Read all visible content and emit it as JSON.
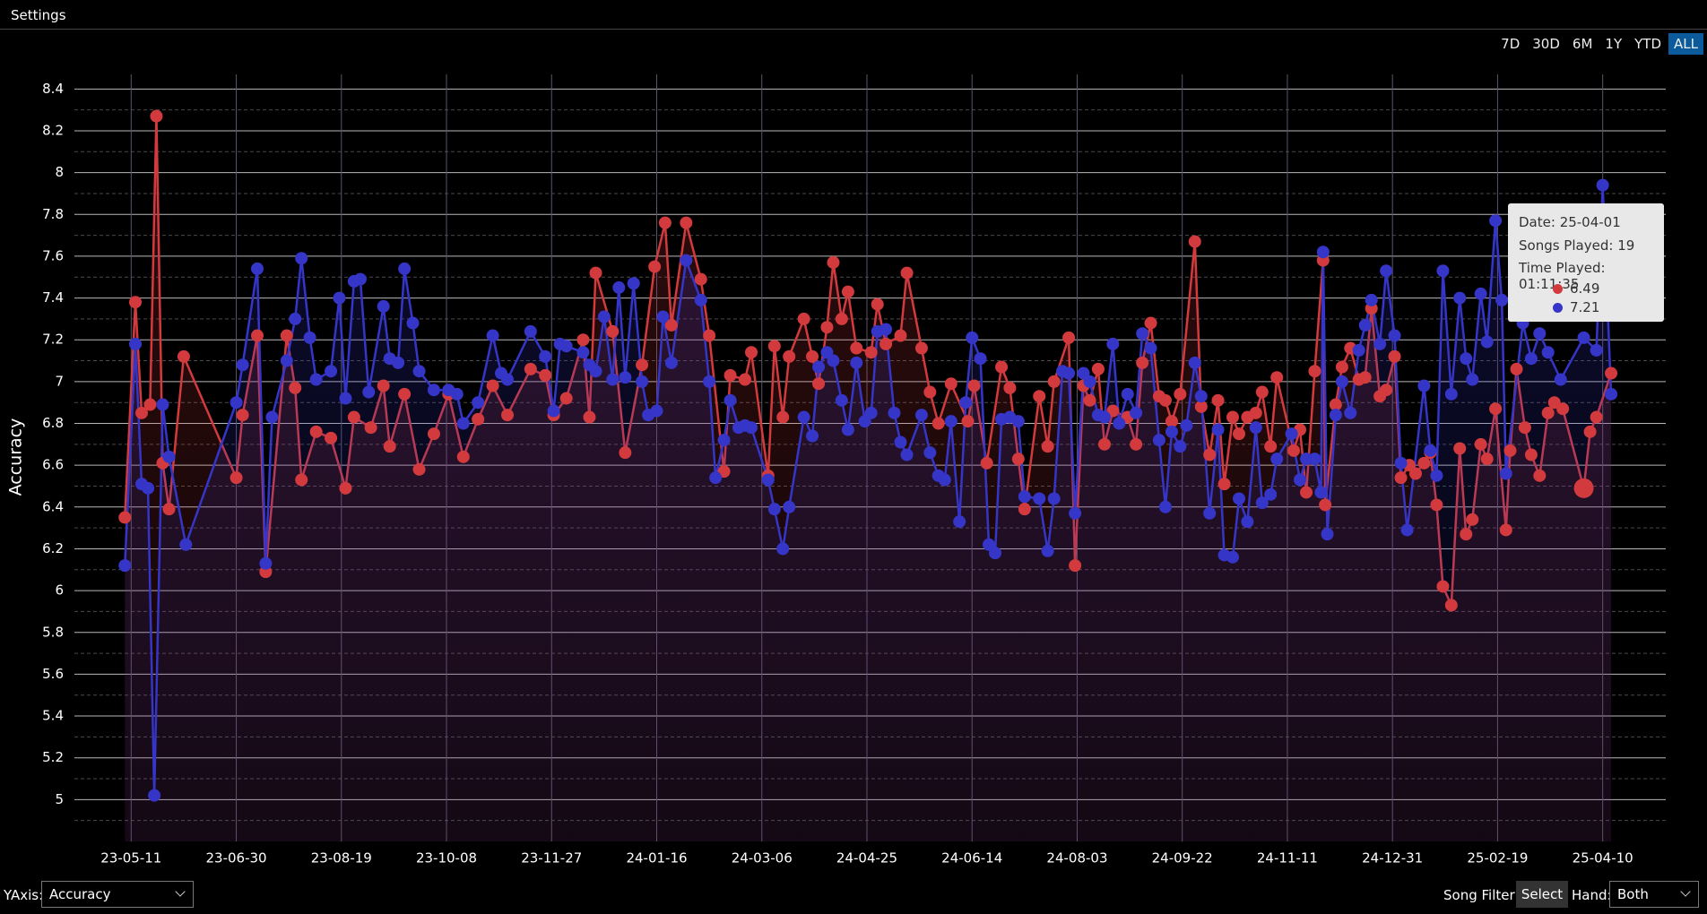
{
  "header": {
    "title": "Settings"
  },
  "range_buttons": {
    "options": [
      "7D",
      "30D",
      "6M",
      "1Y",
      "YTD",
      "ALL"
    ],
    "selected": 5
  },
  "controls": {
    "yaxis_label": "YAxis:",
    "yaxis_value": "Accuracy",
    "song_filter_label": "Song Filter:",
    "song_filter_button": "Select",
    "hand_label": "Hand:",
    "hand_value": "Both"
  },
  "chart_data": {
    "type": "line",
    "y_label": "Accuracy",
    "xlim": [
      "23-04-14",
      "25-05-10"
    ],
    "xticks": [
      "23-05-11",
      "23-06-30",
      "23-08-19",
      "23-10-08",
      "23-11-27",
      "24-01-16",
      "24-03-06",
      "24-04-25",
      "24-06-14",
      "24-08-03",
      "24-09-22",
      "24-11-11",
      "24-12-31",
      "25-02-19",
      "25-04-10"
    ],
    "ylim": [
      4.8,
      8.47
    ],
    "yticks": [
      5,
      5.2,
      5.4,
      5.6,
      5.8,
      6,
      6.2,
      6.4,
      6.6,
      6.8,
      7,
      7.2,
      7.4,
      7.6,
      7.8,
      8,
      8.2,
      8.4
    ],
    "grid": true,
    "minor_grid": true,
    "series": [
      {
        "color": "#d23a3e",
        "x": [
          "23-05-08",
          "23-05-13",
          "23-05-16",
          "23-05-20",
          "23-05-23",
          "23-05-26",
          "23-05-29",
          "23-06-05",
          "23-06-30",
          "23-07-03",
          "23-07-10",
          "23-07-14",
          "23-07-24",
          "23-07-28",
          "23-07-31",
          "23-08-07",
          "23-08-14",
          "23-08-21",
          "23-08-25",
          "23-09-02",
          "23-09-08",
          "23-09-11",
          "23-09-18",
          "23-09-25",
          "23-10-02",
          "23-10-09",
          "23-10-16",
          "23-10-23",
          "23-10-30",
          "23-11-06",
          "23-11-17",
          "23-11-24",
          "23-11-28",
          "23-12-04",
          "23-12-12",
          "23-12-15",
          "23-12-18",
          "23-12-26",
          "24-01-01",
          "24-01-09",
          "24-01-15",
          "24-01-20",
          "24-01-23",
          "24-01-30",
          "24-02-06",
          "24-02-10",
          "24-02-17",
          "24-02-20",
          "24-02-27",
          "24-03-01",
          "24-03-09",
          "24-03-12",
          "24-03-16",
          "24-03-19",
          "24-03-26",
          "24-03-30",
          "24-04-02",
          "24-04-06",
          "24-04-09",
          "24-04-13",
          "24-04-16",
          "24-04-20",
          "24-04-27",
          "24-04-30",
          "24-05-04",
          "24-05-11",
          "24-05-14",
          "24-05-21",
          "24-05-25",
          "24-05-29",
          "24-06-04",
          "24-06-12",
          "24-06-15",
          "24-06-21",
          "24-06-28",
          "24-07-02",
          "24-07-06",
          "24-07-09",
          "24-07-16",
          "24-07-20",
          "24-07-23",
          "24-07-30",
          "24-08-02",
          "24-08-06",
          "24-08-09",
          "24-08-13",
          "24-08-16",
          "24-08-20",
          "24-08-27",
          "24-08-31",
          "24-09-03",
          "24-09-07",
          "24-09-11",
          "24-09-14",
          "24-09-17",
          "24-09-21",
          "24-09-28",
          "24-10-01",
          "24-10-05",
          "24-10-09",
          "24-10-12",
          "24-10-16",
          "24-10-19",
          "24-10-23",
          "24-10-27",
          "24-10-30",
          "24-11-03",
          "24-11-06",
          "24-11-14",
          "24-11-17",
          "24-11-20",
          "24-11-24",
          "24-11-28",
          "24-11-29",
          "24-12-04",
          "24-12-07",
          "24-12-11",
          "24-12-15",
          "24-12-18",
          "24-12-21",
          "24-12-25",
          "24-12-28",
          "25-01-01",
          "25-01-04",
          "25-01-08",
          "25-01-11",
          "25-01-15",
          "25-01-18",
          "25-01-21",
          "25-01-24",
          "25-01-28",
          "25-02-01",
          "25-02-04",
          "25-02-07",
          "25-02-11",
          "25-02-14",
          "25-02-18",
          "25-02-23",
          "25-02-25",
          "25-02-28",
          "25-03-04",
          "25-03-07",
          "25-03-11",
          "25-03-15",
          "25-03-18",
          "25-03-22",
          "25-04-01",
          "25-04-04",
          "25-04-07",
          "25-04-14"
        ],
        "values": [
          6.35,
          7.38,
          6.85,
          6.89,
          8.27,
          6.61,
          6.39,
          7.12,
          6.54,
          6.84,
          7.22,
          6.09,
          7.22,
          6.97,
          6.53,
          6.76,
          6.73,
          6.49,
          6.83,
          6.78,
          6.98,
          6.69,
          6.94,
          6.58,
          6.75,
          6.94,
          6.64,
          6.82,
          6.98,
          6.84,
          7.06,
          7.03,
          6.84,
          6.92,
          7.2,
          6.83,
          7.52,
          7.24,
          6.66,
          7.08,
          7.55,
          7.76,
          7.27,
          7.76,
          7.49,
          7.22,
          6.57,
          7.03,
          7.01,
          7.14,
          6.55,
          7.17,
          6.83,
          7.12,
          7.3,
          7.12,
          6.99,
          7.26,
          7.57,
          7.3,
          7.43,
          7.16,
          7.14,
          7.37,
          7.18,
          7.22,
          7.52,
          7.16,
          6.95,
          6.8,
          6.99,
          6.81,
          6.98,
          6.61,
          7.07,
          6.97,
          6.63,
          6.39,
          6.93,
          6.69,
          7.0,
          7.21,
          6.12,
          6.98,
          6.91,
          7.06,
          6.7,
          6.86,
          6.83,
          6.7,
          7.09,
          7.28,
          6.93,
          6.91,
          6.81,
          6.94,
          7.67,
          6.88,
          6.65,
          6.91,
          6.51,
          6.83,
          6.75,
          6.83,
          6.85,
          6.95,
          6.69,
          7.02,
          6.67,
          6.77,
          6.47,
          7.05,
          7.58,
          6.41,
          6.89,
          7.07,
          7.16,
          7.01,
          7.02,
          7.35,
          6.93,
          6.96,
          7.12,
          6.54,
          6.6,
          6.56,
          6.61,
          6.66,
          6.41,
          6.02,
          5.93,
          6.68,
          6.27,
          6.34,
          6.7,
          6.63,
          6.87,
          6.29,
          6.67,
          7.06,
          6.78,
          6.65,
          6.55,
          6.85,
          6.9,
          6.87,
          6.49,
          6.76,
          6.83,
          7.04
        ]
      },
      {
        "color": "#3535c8",
        "x": [
          "23-05-08",
          "23-05-13",
          "23-05-16",
          "23-05-19",
          "23-05-22",
          "23-05-26",
          "23-05-29",
          "23-06-06",
          "23-06-30",
          "23-07-03",
          "23-07-10",
          "23-07-14",
          "23-07-17",
          "23-07-24",
          "23-07-28",
          "23-07-31",
          "23-08-04",
          "23-08-07",
          "23-08-14",
          "23-08-18",
          "23-08-21",
          "23-08-25",
          "23-08-28",
          "23-09-01",
          "23-09-08",
          "23-09-11",
          "23-09-15",
          "23-09-18",
          "23-09-22",
          "23-09-25",
          "23-10-02",
          "23-10-09",
          "23-10-13",
          "23-10-16",
          "23-10-23",
          "23-10-30",
          "23-11-03",
          "23-11-06",
          "23-11-17",
          "23-11-24",
          "23-11-28",
          "23-12-01",
          "23-12-04",
          "23-12-12",
          "23-12-15",
          "23-12-18",
          "23-12-22",
          "23-12-26",
          "23-12-29",
          "24-01-01",
          "24-01-05",
          "24-01-09",
          "24-01-12",
          "24-01-16",
          "24-01-19",
          "24-01-23",
          "24-01-30",
          "24-02-06",
          "24-02-10",
          "24-02-13",
          "24-02-17",
          "24-02-20",
          "24-02-24",
          "24-02-27",
          "24-03-01",
          "24-03-09",
          "24-03-12",
          "24-03-16",
          "24-03-19",
          "24-03-26",
          "24-03-30",
          "24-04-02",
          "24-04-06",
          "24-04-09",
          "24-04-13",
          "24-04-16",
          "24-04-20",
          "24-04-24",
          "24-04-27",
          "24-04-30",
          "24-05-04",
          "24-05-08",
          "24-05-11",
          "24-05-14",
          "24-05-21",
          "24-05-25",
          "24-05-29",
          "24-06-01",
          "24-06-04",
          "24-06-08",
          "24-06-11",
          "24-06-14",
          "24-06-18",
          "24-06-22",
          "24-06-25",
          "24-06-28",
          "24-07-02",
          "24-07-06",
          "24-07-09",
          "24-07-16",
          "24-07-20",
          "24-07-23",
          "24-07-27",
          "24-07-30",
          "24-08-02",
          "24-08-06",
          "24-08-09",
          "24-08-13",
          "24-08-16",
          "24-08-20",
          "24-08-23",
          "24-08-27",
          "24-08-31",
          "24-09-03",
          "24-09-07",
          "24-09-11",
          "24-09-14",
          "24-09-17",
          "24-09-21",
          "24-09-24",
          "24-09-28",
          "24-10-01",
          "24-10-05",
          "24-10-09",
          "24-10-12",
          "24-10-16",
          "24-10-19",
          "24-10-23",
          "24-10-27",
          "24-10-30",
          "24-11-03",
          "24-11-06",
          "24-11-13",
          "24-11-17",
          "24-11-20",
          "24-11-24",
          "24-11-27",
          "24-11-28",
          "24-11-30",
          "24-12-04",
          "24-12-07",
          "24-12-11",
          "24-12-15",
          "24-12-18",
          "24-12-21",
          "24-12-25",
          "24-12-28",
          "25-01-01",
          "25-01-04",
          "25-01-07",
          "25-01-15",
          "25-01-18",
          "25-01-21",
          "25-01-24",
          "25-01-28",
          "25-02-01",
          "25-02-04",
          "25-02-07",
          "25-02-11",
          "25-02-14",
          "25-02-18",
          "25-02-21",
          "25-02-23",
          "25-03-03",
          "25-03-07",
          "25-03-11",
          "25-03-15",
          "25-03-21",
          "25-04-01",
          "25-04-07",
          "25-04-10",
          "25-04-14"
        ],
        "values": [
          6.12,
          7.18,
          6.51,
          6.49,
          5.02,
          6.89,
          6.64,
          6.22,
          6.9,
          7.08,
          7.54,
          6.13,
          6.83,
          7.1,
          7.3,
          7.59,
          7.21,
          7.01,
          7.05,
          7.4,
          6.92,
          7.48,
          7.49,
          6.95,
          7.36,
          7.11,
          7.09,
          7.54,
          7.28,
          7.05,
          6.96,
          6.96,
          6.94,
          6.8,
          6.9,
          7.22,
          7.04,
          7.01,
          7.24,
          7.12,
          6.86,
          7.18,
          7.17,
          7.14,
          7.08,
          7.05,
          7.31,
          7.01,
          7.45,
          7.02,
          7.47,
          7.0,
          6.84,
          6.86,
          7.31,
          7.09,
          7.58,
          7.39,
          7.0,
          6.54,
          6.72,
          6.91,
          6.78,
          6.79,
          6.78,
          6.53,
          6.39,
          6.2,
          6.4,
          6.83,
          6.74,
          7.07,
          7.14,
          7.1,
          6.91,
          6.77,
          7.09,
          6.81,
          6.85,
          7.24,
          7.25,
          6.85,
          6.71,
          6.65,
          6.84,
          6.66,
          6.55,
          6.53,
          6.81,
          6.33,
          6.9,
          7.21,
          7.11,
          6.22,
          6.18,
          6.82,
          6.83,
          6.81,
          6.45,
          6.44,
          6.19,
          6.44,
          7.05,
          7.04,
          6.37,
          7.04,
          7.0,
          6.84,
          6.83,
          7.18,
          6.8,
          6.94,
          6.85,
          7.23,
          7.16,
          6.72,
          6.4,
          6.76,
          6.69,
          6.79,
          7.09,
          6.93,
          6.37,
          6.77,
          6.17,
          6.16,
          6.44,
          6.33,
          6.78,
          6.42,
          6.46,
          6.63,
          6.75,
          6.53,
          6.63,
          6.63,
          6.47,
          7.62,
          6.27,
          6.84,
          7.0,
          6.85,
          7.15,
          7.27,
          7.39,
          7.18,
          7.53,
          7.22,
          6.61,
          6.29,
          6.98,
          6.67,
          6.55,
          7.53,
          6.94,
          7.4,
          7.11,
          7.01,
          7.42,
          7.19,
          7.77,
          7.39,
          6.56,
          7.28,
          7.11,
          7.23,
          7.14,
          7.01,
          7.21,
          7.15,
          7.94,
          6.94
        ]
      }
    ],
    "tooltip": {
      "date_label": "Date:",
      "date": "25-04-01",
      "songs_label": "Songs Played:",
      "songs": 19,
      "time_label": "Time Played:",
      "time": "01:11:35"
    }
  }
}
